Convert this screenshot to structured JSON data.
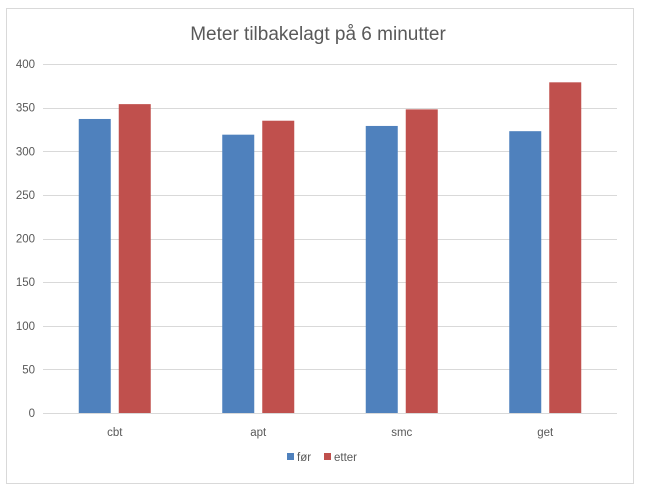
{
  "chart_data": {
    "type": "bar",
    "title": "Meter tilbakelagt på 6 minutter",
    "xlabel": "",
    "ylabel": "",
    "categories": [
      "cbt",
      "apt",
      "smc",
      "get"
    ],
    "series": [
      {
        "name": "før",
        "color": "#4f81bd",
        "values": [
          337,
          319,
          329,
          323
        ]
      },
      {
        "name": "etter",
        "color": "#c0504d",
        "values": [
          354,
          335,
          348,
          379
        ]
      }
    ],
    "ylim": [
      0,
      400
    ],
    "yticks": [
      0,
      50,
      100,
      150,
      200,
      250,
      300,
      350,
      400
    ],
    "grid": true,
    "legend_position": "bottom"
  }
}
